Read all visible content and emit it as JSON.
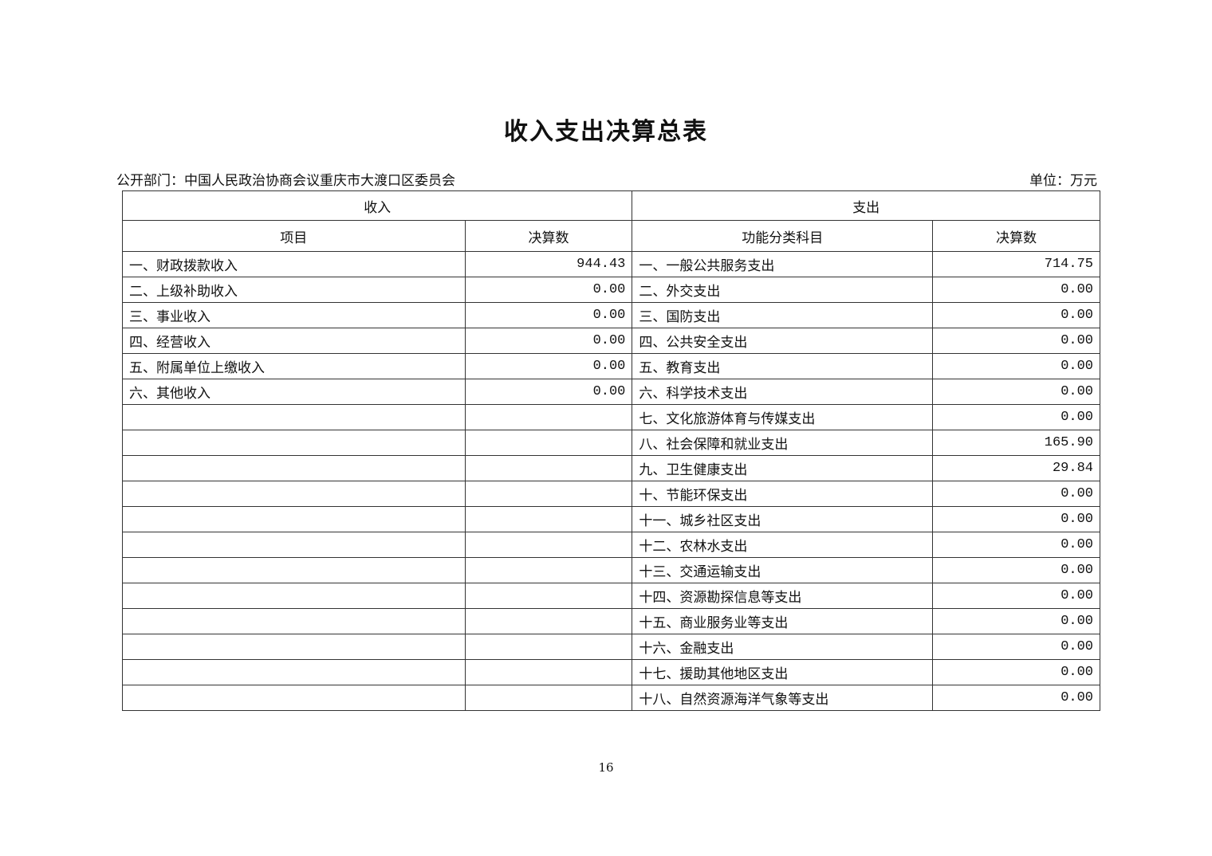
{
  "title": "收入支出决算总表",
  "department": "公开部门：中国人民政治协商会议重庆市大渡口区委员会",
  "unit": "单位：万元",
  "headers": {
    "income": "收入",
    "expense": "支出",
    "income_item": "项目",
    "income_amount": "决算数",
    "expense_item": "功能分类科目",
    "expense_amount": "决算数"
  },
  "rows": [
    {
      "income_item": "一、财政拨款收入",
      "income_amount": "944.43",
      "expense_item": "一、一般公共服务支出",
      "expense_amount": "714.75"
    },
    {
      "income_item": "二、上级补助收入",
      "income_amount": "0.00",
      "expense_item": "二、外交支出",
      "expense_amount": "0.00"
    },
    {
      "income_item": "三、事业收入",
      "income_amount": "0.00",
      "expense_item": "三、国防支出",
      "expense_amount": "0.00"
    },
    {
      "income_item": "四、经营收入",
      "income_amount": "0.00",
      "expense_item": "四、公共安全支出",
      "expense_amount": "0.00"
    },
    {
      "income_item": "五、附属单位上缴收入",
      "income_amount": "0.00",
      "expense_item": "五、教育支出",
      "expense_amount": "0.00"
    },
    {
      "income_item": "六、其他收入",
      "income_amount": "0.00",
      "expense_item": "六、科学技术支出",
      "expense_amount": "0.00"
    },
    {
      "income_item": "",
      "income_amount": "",
      "expense_item": "七、文化旅游体育与传媒支出",
      "expense_amount": "0.00"
    },
    {
      "income_item": "",
      "income_amount": "",
      "expense_item": "八、社会保障和就业支出",
      "expense_amount": "165.90"
    },
    {
      "income_item": "",
      "income_amount": "",
      "expense_item": "九、卫生健康支出",
      "expense_amount": "29.84"
    },
    {
      "income_item": "",
      "income_amount": "",
      "expense_item": "十、节能环保支出",
      "expense_amount": "0.00"
    },
    {
      "income_item": "",
      "income_amount": "",
      "expense_item": "十一、城乡社区支出",
      "expense_amount": "0.00"
    },
    {
      "income_item": "",
      "income_amount": "",
      "expense_item": "十二、农林水支出",
      "expense_amount": "0.00"
    },
    {
      "income_item": "",
      "income_amount": "",
      "expense_item": "十三、交通运输支出",
      "expense_amount": "0.00"
    },
    {
      "income_item": "",
      "income_amount": "",
      "expense_item": "十四、资源勘探信息等支出",
      "expense_amount": "0.00"
    },
    {
      "income_item": "",
      "income_amount": "",
      "expense_item": "十五、商业服务业等支出",
      "expense_amount": "0.00"
    },
    {
      "income_item": "",
      "income_amount": "",
      "expense_item": "十六、金融支出",
      "expense_amount": "0.00"
    },
    {
      "income_item": "",
      "income_amount": "",
      "expense_item": "十七、援助其他地区支出",
      "expense_amount": "0.00"
    },
    {
      "income_item": "",
      "income_amount": "",
      "expense_item": "十八、自然资源海洋气象等支出",
      "expense_amount": "0.00"
    }
  ],
  "page_number": "16"
}
